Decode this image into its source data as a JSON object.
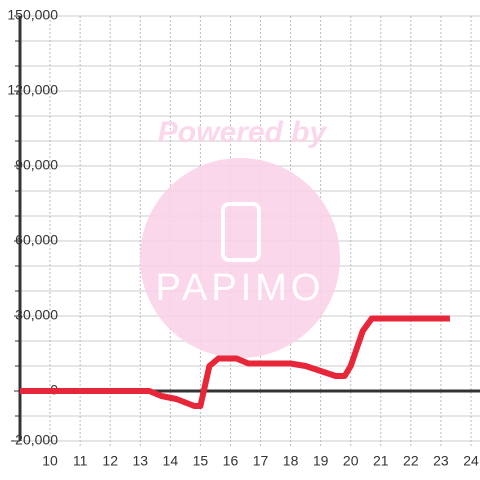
{
  "chart_data": {
    "type": "line",
    "x": [
      9,
      13.3,
      13.7,
      14.2,
      14.8,
      15.0,
      15.3,
      15.6,
      16.2,
      16.6,
      18,
      18.5,
      19,
      19.5,
      19.8,
      20,
      20.4,
      20.7,
      23.3
    ],
    "series": [
      {
        "color": "#e8263a",
        "values": [
          0,
          0,
          -2000,
          -3200,
          -6000,
          -6000,
          10000,
          13000,
          13000,
          11000,
          11000,
          10000,
          8000,
          6000,
          6000,
          10000,
          24000,
          29000,
          29000
        ]
      }
    ],
    "xlim": [
      9,
      24.3
    ],
    "xticks": [
      10,
      11,
      12,
      13,
      14,
      15,
      16,
      17,
      18,
      19,
      20,
      21,
      22,
      23,
      24
    ],
    "ylim": [
      -20000,
      150000
    ],
    "yticks": [
      {
        "value": -20000,
        "label": "-20,000"
      },
      0,
      {
        "value": 30000,
        "label": "30,000"
      },
      {
        "value": 60000,
        "label": "60,000"
      },
      {
        "value": 90000,
        "label": "90,000"
      },
      {
        "value": 120000,
        "label": "120,000"
      },
      {
        "value": 150000,
        "label": "150,000"
      }
    ],
    "yminorticks": [
      -10000,
      10000,
      20000,
      40000,
      50000,
      70000,
      80000,
      100000,
      110000,
      130000,
      140000
    ],
    "grid": true,
    "watermark": {
      "top": "Powered by",
      "logo": "PAPIMO"
    }
  }
}
